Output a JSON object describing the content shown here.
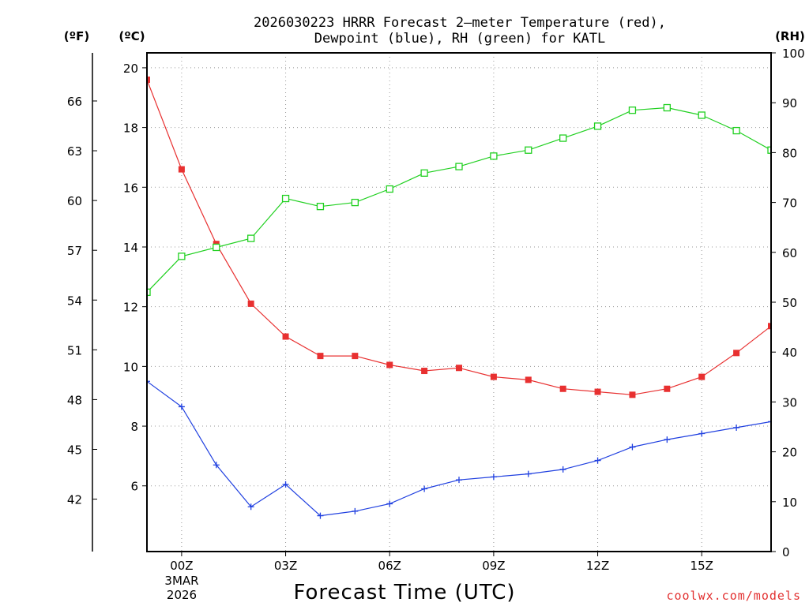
{
  "chart_data": {
    "type": "line",
    "title_line1": "2026030223 HRRR Forecast 2—meter Temperature (red),",
    "title_line2": "Dewpoint (blue), RH (green) for KATL",
    "xlabel": "Forecast Time (UTC)",
    "credit": "coolwx.com/models",
    "units": {
      "fahrenheit": "(ºF)",
      "celsius": "(ºC)",
      "rh": "(RH)"
    },
    "x_ticks": [
      {
        "hour": 0,
        "label": "00Z"
      },
      {
        "hour": 3,
        "label": "03Z"
      },
      {
        "hour": 6,
        "label": "06Z"
      },
      {
        "hour": 9,
        "label": "09Z"
      },
      {
        "hour": 12,
        "label": "12Z"
      },
      {
        "hour": 15,
        "label": "15Z"
      }
    ],
    "date_label": [
      "3MAR",
      "2026"
    ],
    "xlim": [
      -1,
      17
    ],
    "celsius_ylim": [
      3.8,
      20.5
    ],
    "celsius_ticks": [
      6,
      8,
      10,
      12,
      14,
      16,
      18,
      20
    ],
    "fahrenheit_ticks": [
      42,
      45,
      48,
      51,
      54,
      57,
      60,
      63,
      66
    ],
    "rh_ylim": [
      0,
      100
    ],
    "rh_ticks": [
      0,
      10,
      20,
      30,
      40,
      50,
      60,
      70,
      80,
      90,
      100
    ],
    "x": [
      -1,
      0,
      1,
      2,
      3,
      4,
      5,
      6,
      7,
      8,
      9,
      10,
      11,
      12,
      13,
      14,
      15,
      16,
      17
    ],
    "series": [
      {
        "name": "Temperature",
        "axis": "celsius",
        "color": "#e83030",
        "marker": "filled-square",
        "values": [
          19.6,
          16.6,
          14.1,
          12.1,
          11.0,
          10.35,
          10.35,
          10.05,
          9.85,
          9.95,
          9.65,
          9.55,
          9.25,
          9.15,
          9.05,
          9.25,
          9.65,
          10.45,
          11.35
        ]
      },
      {
        "name": "Dewpoint",
        "axis": "celsius",
        "color": "#2040e0",
        "marker": "plus",
        "values": [
          9.5,
          8.65,
          6.7,
          5.3,
          6.05,
          5.0,
          5.15,
          5.4,
          5.9,
          6.2,
          6.3,
          6.4,
          6.55,
          6.85,
          7.3,
          7.55,
          7.75,
          7.95,
          8.15
        ]
      },
      {
        "name": "Relative Humidity",
        "axis": "rh",
        "color": "#20d020",
        "marker": "open-square",
        "values": [
          52,
          59.2,
          61,
          62.8,
          70.8,
          69.2,
          70,
          72.7,
          75.9,
          77.2,
          79.3,
          80.5,
          82.9,
          85.3,
          88.5,
          89,
          87.5,
          84.4,
          80.5
        ]
      }
    ]
  }
}
